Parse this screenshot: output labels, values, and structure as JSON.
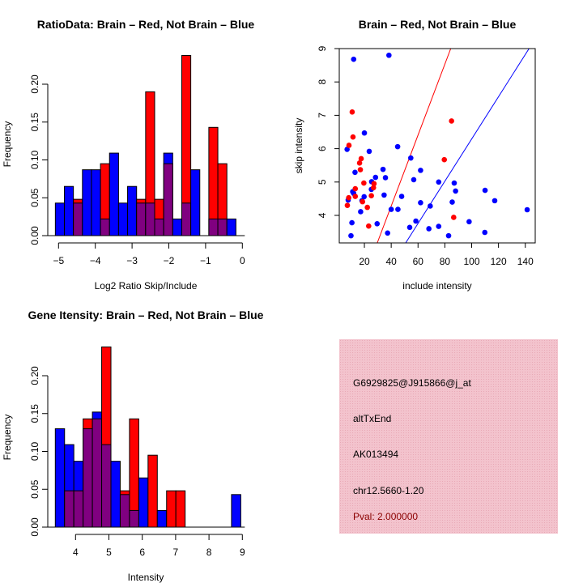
{
  "colors": {
    "brain": "#ff0000",
    "not_brain": "#0000ff",
    "overlap": "#800080",
    "info_bg": "#f3c3cd",
    "pval": "#8b0000"
  },
  "chart_data": [
    {
      "type": "bar",
      "subtype": "overlaid-histogram",
      "title": "RatioData: Brain – Red, Not Brain – Blue",
      "xlabel": "Log2 Ratio Skip/Include",
      "ylabel": "Frequency",
      "xlim": [
        -5.2,
        0
      ],
      "ylim": [
        0,
        0.24
      ],
      "xticks": [
        "−5",
        "−4",
        "−3",
        "−2",
        "−1",
        "0"
      ],
      "xtick_values": [
        -5,
        -4,
        -3,
        -2,
        -1,
        0
      ],
      "yticks": [
        "0.00",
        "0.05",
        "0.10",
        "0.15",
        "0.20"
      ],
      "ytick_values": [
        0,
        0.05,
        0.1,
        0.15,
        0.2
      ],
      "bin_start": -5.087,
      "bin_width": 0.2456,
      "series": [
        {
          "name": "Not Brain",
          "color": "blue",
          "values": [
            0.043,
            0.065,
            0.043,
            0.087,
            0.087,
            0.022,
            0.109,
            0.043,
            0.065,
            0.043,
            0.043,
            0.022,
            0.109,
            0.022,
            0.043,
            0.087,
            0,
            0.022,
            0.022,
            0.022
          ]
        },
        {
          "name": "Brain",
          "color": "red",
          "values": [
            0,
            0,
            0.048,
            0,
            0,
            0.095,
            0,
            0,
            0,
            0.048,
            0.19,
            0.048,
            0.095,
            0,
            0.238,
            0,
            0,
            0.143,
            0.095,
            0
          ]
        }
      ]
    },
    {
      "type": "scatter",
      "title": "Brain – Red, Not Brain – Blue",
      "xlabel": "include intensity",
      "ylabel": "skip intensity",
      "xlim": [
        1.45,
        147.2
      ],
      "ylim": [
        3.175,
        9
      ],
      "xticks": [
        "20",
        "40",
        "60",
        "80",
        "100",
        "120",
        "140"
      ],
      "xtick_values": [
        20,
        40,
        60,
        80,
        100,
        120,
        140
      ],
      "yticks": [
        "4",
        "5",
        "6",
        "7",
        "8",
        "9"
      ],
      "ytick_values": [
        4,
        5,
        6,
        7,
        8,
        9
      ],
      "series": [
        {
          "name": "Not Brain",
          "color": "blue",
          "points": [
            [
              12,
              8.68
            ],
            [
              38.3,
              8.8
            ],
            [
              20,
              6.47
            ],
            [
              7.1,
              5.98
            ],
            [
              23.6,
              5.92
            ],
            [
              44.8,
              6.06
            ],
            [
              54.6,
              5.72
            ],
            [
              13,
              5.29
            ],
            [
              33.9,
              5.38
            ],
            [
              61.9,
              5.35
            ],
            [
              35.7,
              5.13
            ],
            [
              28.3,
              5.14
            ],
            [
              25.4,
              5.01
            ],
            [
              56.8,
              5.07
            ],
            [
              75.4,
              5.0
            ],
            [
              87,
              4.97
            ],
            [
              88,
              4.73
            ],
            [
              25.2,
              4.78
            ],
            [
              11.3,
              4.71
            ],
            [
              12,
              4.66
            ],
            [
              19.8,
              4.56
            ],
            [
              34.7,
              4.61
            ],
            [
              47.8,
              4.57
            ],
            [
              7.9,
              4.46
            ],
            [
              18.2,
              4.44
            ],
            [
              45,
              4.18
            ],
            [
              40,
              4.18
            ],
            [
              61.9,
              4.38
            ],
            [
              69.1,
              4.28
            ],
            [
              85.5,
              4.4
            ],
            [
              110,
              4.75
            ],
            [
              117.2,
              4.44
            ],
            [
              141.4,
              4.17
            ],
            [
              17.2,
              4.11
            ],
            [
              58.4,
              3.83
            ],
            [
              98.1,
              3.81
            ],
            [
              10.7,
              3.78
            ],
            [
              29.5,
              3.75
            ],
            [
              53.8,
              3.64
            ],
            [
              68.1,
              3.6
            ],
            [
              75.4,
              3.67
            ],
            [
              37.3,
              3.47
            ],
            [
              82.8,
              3.39
            ],
            [
              109.8,
              3.49
            ],
            [
              10,
              3.39
            ]
          ]
        },
        {
          "name": "Brain",
          "color": "red",
          "points": [
            [
              10.9,
              7.1
            ],
            [
              11.5,
              6.35
            ],
            [
              8.5,
              6.1
            ],
            [
              85,
              6.83
            ],
            [
              17.6,
              5.7
            ],
            [
              16.4,
              5.57
            ],
            [
              17,
              5.37
            ],
            [
              79.6,
              5.67
            ],
            [
              19.6,
              4.97
            ],
            [
              27.2,
              4.95
            ],
            [
              26.8,
              4.83
            ],
            [
              13.2,
              4.8
            ],
            [
              8.3,
              4.53
            ],
            [
              13.2,
              4.57
            ],
            [
              25.2,
              4.59
            ],
            [
              18.6,
              4.41
            ],
            [
              7.3,
              4.3
            ],
            [
              22.2,
              4.24
            ],
            [
              23.2,
              3.68
            ],
            [
              86.6,
              3.94
            ]
          ]
        }
      ],
      "lines": [
        {
          "name": "Brain fit",
          "color": "red",
          "from": [
            29.6,
            3.175
          ],
          "to": [
            84.4,
            9
          ]
        },
        {
          "name": "Not Brain fit",
          "color": "blue",
          "from": [
            50.8,
            3.175
          ],
          "to": [
            142.8,
            9
          ]
        }
      ]
    },
    {
      "type": "bar",
      "subtype": "overlaid-histogram",
      "title": "Gene Itensity: Brain – Red, Not Brain – Blue",
      "xlabel": "Intensity",
      "ylabel": "Frequency",
      "xlim": [
        3.3,
        9
      ],
      "ylim": [
        0,
        0.24
      ],
      "xticks": [
        "4",
        "5",
        "6",
        "7",
        "8",
        "9"
      ],
      "xtick_values": [
        4,
        5,
        6,
        7,
        8,
        9
      ],
      "yticks": [
        "0.00",
        "0.05",
        "0.10",
        "0.15",
        "0.20"
      ],
      "ytick_values": [
        0,
        0.05,
        0.1,
        0.15,
        0.2
      ],
      "bin_start": 3.393,
      "bin_width": 0.278,
      "series": [
        {
          "name": "Not Brain",
          "color": "blue",
          "values": [
            0.13,
            0.109,
            0.087,
            0.13,
            0.152,
            0.109,
            0.087,
            0.043,
            0.022,
            0.065,
            0,
            0.022,
            0,
            0,
            0,
            0,
            0,
            0,
            0,
            0.043
          ]
        },
        {
          "name": "Brain",
          "color": "red",
          "values": [
            0,
            0.048,
            0.048,
            0.143,
            0.143,
            0.238,
            0,
            0.048,
            0.143,
            0,
            0.095,
            0,
            0.048,
            0.048,
            0,
            0,
            0,
            0,
            0,
            0
          ]
        }
      ]
    }
  ],
  "info_panel": {
    "probe_id": "G6929825@J915866@j_at",
    "event_type": "altTxEnd",
    "accession": "AK013494",
    "location": "chr12.5660-1.20",
    "pval": "Pval: 2.000000"
  }
}
